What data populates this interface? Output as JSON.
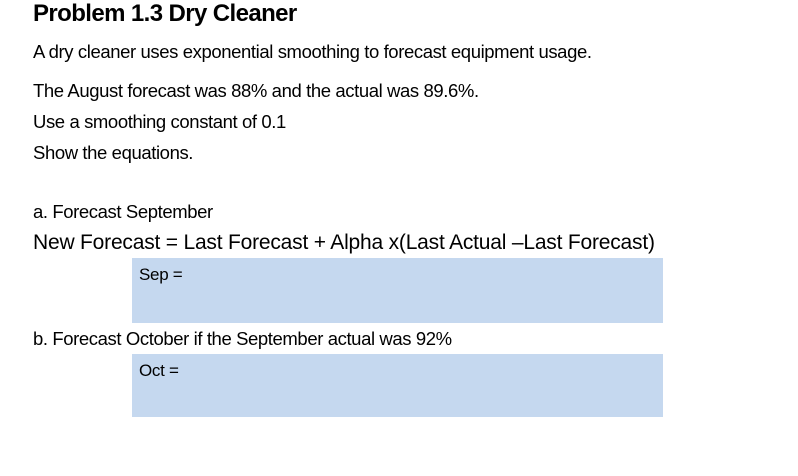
{
  "problem": {
    "title": "Problem 1.3 Dry Cleaner",
    "intro": "A dry cleaner uses exponential smoothing to forecast equipment usage.",
    "given": "The August forecast was 88% and the actual was 89.6%.",
    "constant": "Use a smoothing constant of 0.1",
    "instruction": "Show the equations."
  },
  "part_a": {
    "question": "a. Forecast September",
    "equation": "New Forecast = Last Forecast + Alpha x(Last Actual –Last Forecast)",
    "answer_label": "Sep =",
    "answer_value": ""
  },
  "part_b": {
    "question": "b. Forecast October if the September actual was 92%",
    "answer_label": "Oct =",
    "answer_value": ""
  },
  "colors": {
    "answer_box_fill": "#C5D8EF",
    "text": "#000000",
    "background": "#FFFFFF"
  }
}
